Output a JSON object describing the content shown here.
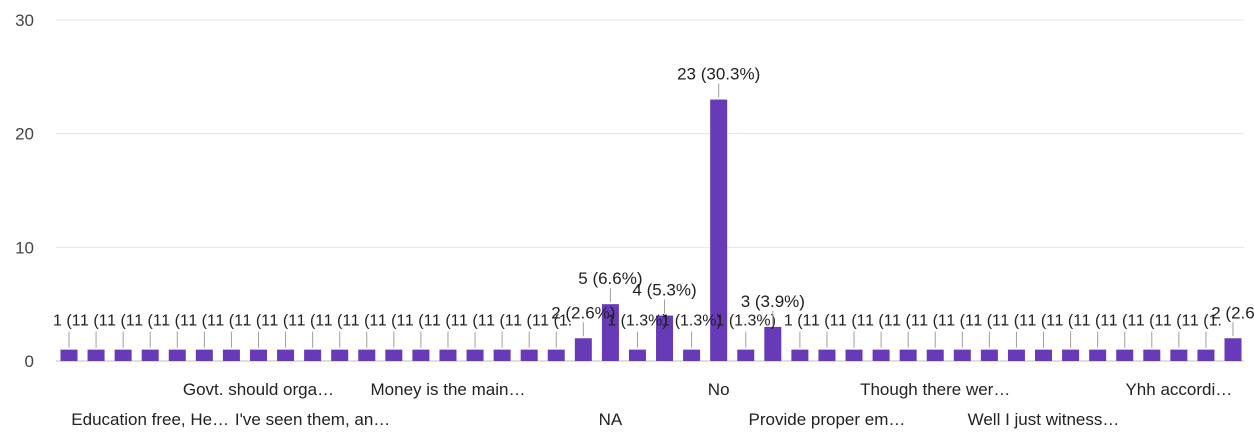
{
  "chart_data": {
    "type": "bar",
    "color": "#673ab7",
    "grid": true,
    "legend": "none",
    "ylim": [
      0,
      30
    ],
    "yticks": [
      0,
      10,
      20,
      30
    ],
    "values": [
      1,
      1,
      1,
      1,
      1,
      1,
      1,
      1,
      1,
      1,
      1,
      1,
      1,
      1,
      1,
      1,
      1,
      1,
      1,
      2,
      5,
      1,
      4,
      1,
      23,
      1,
      3,
      1,
      1,
      1,
      1,
      1,
      1,
      1,
      1,
      1,
      1,
      1,
      1,
      1,
      1,
      1,
      1,
      2
    ],
    "data_labels": [
      "1 (1.",
      "1 (1.",
      "1 (1.",
      "1 (1.",
      "1 (1.",
      "1 (1.",
      "1 (1.",
      "1 (1.",
      "1 (1.",
      "1 (1.",
      "1 (1.",
      "1 (1.",
      "1 (1.",
      "1 (1.",
      "1 (1.",
      "1 (1.",
      "1 (1.",
      "1 (1.",
      "1 (1.",
      "2 (2.6%)",
      "5 (6.6%)",
      "1 (1.3%)",
      "4 (5.3%)",
      "1 (1.3%)",
      "23 (30.3%)",
      "1 (1.3%)",
      "3 (3.9%)",
      "1 (1.",
      "1 (1.",
      "1 (1.",
      "1 (1.",
      "1 (1.",
      "1 (1.",
      "1 (1.",
      "1 (1.",
      "1 (1.",
      "1 (1.",
      "1 (1.",
      "1 (1.",
      "1 (1.",
      "1 (1.",
      "1 (1.",
      "1 (1.",
      "2 (2.6"
    ],
    "category_labels": [
      {
        "index": 3,
        "row": 2,
        "text": "Education free, He…"
      },
      {
        "index": 7,
        "row": 1,
        "text": "Govt. should orga…"
      },
      {
        "index": 9,
        "row": 2,
        "text": "I've seen them, an…"
      },
      {
        "index": 14,
        "row": 1,
        "text": "Money is the main…"
      },
      {
        "index": 20,
        "row": 2,
        "text": "NA"
      },
      {
        "index": 24,
        "row": 1,
        "text": "No"
      },
      {
        "index": 28,
        "row": 2,
        "text": "Provide proper em…"
      },
      {
        "index": 32,
        "row": 1,
        "text": "Though there wer…"
      },
      {
        "index": 36,
        "row": 2,
        "text": "Well I just witness…"
      },
      {
        "index": 41,
        "row": 1,
        "text": "Yhh accordi…"
      }
    ]
  }
}
